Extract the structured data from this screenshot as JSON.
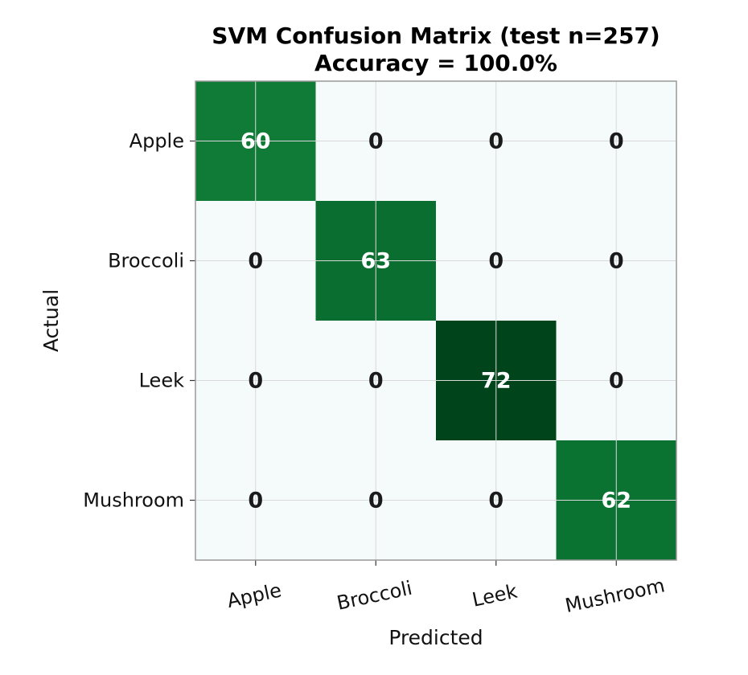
{
  "chart_data": {
    "type": "heatmap",
    "title": "SVM Confusion Matrix (test n=257)",
    "subtitle": "Accuracy = 100.0%",
    "xlabel": "Predicted",
    "ylabel": "Actual",
    "x_categories": [
      "Apple",
      "Broccoli",
      "Leek",
      "Mushroom"
    ],
    "y_categories": [
      "Apple",
      "Broccoli",
      "Leek",
      "Mushroom"
    ],
    "values": [
      [
        60,
        0,
        0,
        0
      ],
      [
        0,
        63,
        0,
        0
      ],
      [
        0,
        0,
        72,
        0
      ],
      [
        0,
        0,
        0,
        62
      ]
    ],
    "colormap": "greens",
    "grid": true,
    "colors": {
      "low": "#f5fbfb",
      "high": "#00441b",
      "text_on_dark": "#ffffff",
      "text_on_light": "#1a1a1a",
      "grid": "#d9d9d9",
      "frame": "#999999"
    }
  }
}
